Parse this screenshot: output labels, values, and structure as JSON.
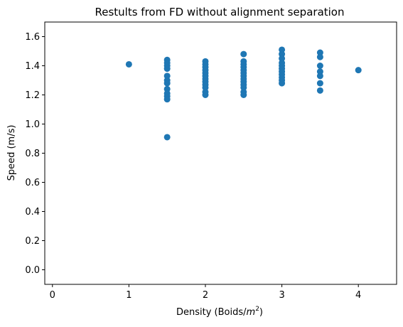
{
  "chart_data": {
    "type": "scatter",
    "title": "Restults from FD without alignment separation",
    "xlabel": "Density (Boids/m²)",
    "xlabel_parts": {
      "pre": "Density (Boids/",
      "var": "m",
      "sup": "2",
      "post": ")"
    },
    "ylabel": "Speed (m/s)",
    "xlim": [
      -0.1,
      4.5
    ],
    "ylim": [
      -0.1,
      1.7
    ],
    "xticks": [
      0,
      1,
      2,
      3,
      4
    ],
    "yticks": [
      0.0,
      0.2,
      0.4,
      0.6,
      0.8,
      1.0,
      1.2,
      1.4,
      1.6
    ],
    "xtick_labels": [
      "0",
      "1",
      "2",
      "3",
      "4"
    ],
    "ytick_labels": [
      "0.0",
      "0.2",
      "0.4",
      "0.6",
      "0.8",
      "1.0",
      "1.2",
      "1.4",
      "1.6"
    ],
    "grid": false,
    "marker_color": "#1f77b4",
    "points": [
      {
        "x": 1.0,
        "y": 1.41
      },
      {
        "x": 1.5,
        "y": 1.44
      },
      {
        "x": 1.5,
        "y": 1.42
      },
      {
        "x": 1.5,
        "y": 1.4
      },
      {
        "x": 1.5,
        "y": 1.38
      },
      {
        "x": 1.5,
        "y": 1.33
      },
      {
        "x": 1.5,
        "y": 1.3
      },
      {
        "x": 1.5,
        "y": 1.28
      },
      {
        "x": 1.5,
        "y": 1.24
      },
      {
        "x": 1.5,
        "y": 1.21
      },
      {
        "x": 1.5,
        "y": 1.19
      },
      {
        "x": 1.5,
        "y": 1.17
      },
      {
        "x": 1.5,
        "y": 0.91
      },
      {
        "x": 2.0,
        "y": 1.43
      },
      {
        "x": 2.0,
        "y": 1.41
      },
      {
        "x": 2.0,
        "y": 1.39
      },
      {
        "x": 2.0,
        "y": 1.37
      },
      {
        "x": 2.0,
        "y": 1.35
      },
      {
        "x": 2.0,
        "y": 1.33
      },
      {
        "x": 2.0,
        "y": 1.31
      },
      {
        "x": 2.0,
        "y": 1.29
      },
      {
        "x": 2.0,
        "y": 1.27
      },
      {
        "x": 2.0,
        "y": 1.25
      },
      {
        "x": 2.0,
        "y": 1.22
      },
      {
        "x": 2.0,
        "y": 1.2
      },
      {
        "x": 2.5,
        "y": 1.48
      },
      {
        "x": 2.5,
        "y": 1.43
      },
      {
        "x": 2.5,
        "y": 1.41
      },
      {
        "x": 2.5,
        "y": 1.39
      },
      {
        "x": 2.5,
        "y": 1.37
      },
      {
        "x": 2.5,
        "y": 1.35
      },
      {
        "x": 2.5,
        "y": 1.33
      },
      {
        "x": 2.5,
        "y": 1.31
      },
      {
        "x": 2.5,
        "y": 1.29
      },
      {
        "x": 2.5,
        "y": 1.27
      },
      {
        "x": 2.5,
        "y": 1.25
      },
      {
        "x": 2.5,
        "y": 1.22
      },
      {
        "x": 2.5,
        "y": 1.2
      },
      {
        "x": 3.0,
        "y": 1.51
      },
      {
        "x": 3.0,
        "y": 1.48
      },
      {
        "x": 3.0,
        "y": 1.45
      },
      {
        "x": 3.0,
        "y": 1.42
      },
      {
        "x": 3.0,
        "y": 1.4
      },
      {
        "x": 3.0,
        "y": 1.38
      },
      {
        "x": 3.0,
        "y": 1.36
      },
      {
        "x": 3.0,
        "y": 1.34
      },
      {
        "x": 3.0,
        "y": 1.32
      },
      {
        "x": 3.0,
        "y": 1.3
      },
      {
        "x": 3.0,
        "y": 1.28
      },
      {
        "x": 3.5,
        "y": 1.49
      },
      {
        "x": 3.5,
        "y": 1.46
      },
      {
        "x": 3.5,
        "y": 1.4
      },
      {
        "x": 3.5,
        "y": 1.36
      },
      {
        "x": 3.5,
        "y": 1.33
      },
      {
        "x": 3.5,
        "y": 1.28
      },
      {
        "x": 3.5,
        "y": 1.23
      },
      {
        "x": 4.0,
        "y": 1.37
      }
    ]
  }
}
